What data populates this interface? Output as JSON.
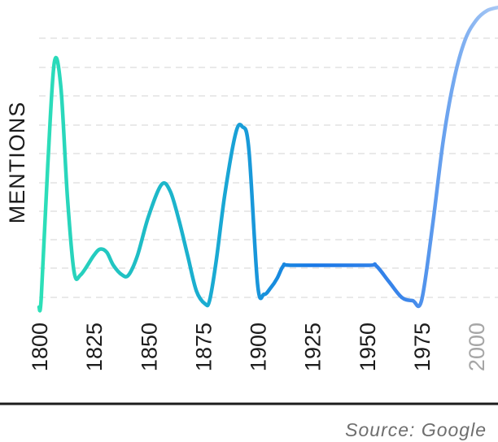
{
  "chart_data": {
    "type": "line",
    "ylabel": "MENTIONS",
    "xlabel": "",
    "title": "",
    "source": "Source: Google",
    "x_ticks": [
      "1800",
      "1825",
      "1850",
      "1875",
      "1900",
      "1925",
      "1950",
      "1975",
      "2000"
    ],
    "faded_ticks": [
      "2000"
    ],
    "xlim": [
      1800,
      2010
    ],
    "ylim": [
      0,
      9
    ],
    "grid": "horizontal-dashed",
    "y_tick_labels_shown": false,
    "line_gradient": [
      "#2de0b8",
      "#1fbfc4",
      "#19a8d4",
      "#1877e6",
      "#3c86ea",
      "#a9c9f5"
    ],
    "series": [
      {
        "x": [
          1800,
          1801,
          1804,
          1807,
          1810,
          1813,
          1816,
          1819,
          1825,
          1828,
          1831,
          1834,
          1838,
          1841,
          1845,
          1850,
          1856,
          1860,
          1864,
          1868,
          1872,
          1876,
          1878,
          1881,
          1885,
          1890,
          1893,
          1896,
          1900,
          1903,
          1906,
          1909,
          1912,
          1916,
          1950,
          1954,
          1960,
          1966,
          1971,
          1975,
          1980,
          1985,
          1990,
          1995,
          2000,
          2005,
          2010
        ],
        "y": [
          0.1,
          0.4,
          4.5,
          7.7,
          6.9,
          3.5,
          1.2,
          1.1,
          1.7,
          1.9,
          1.8,
          1.4,
          1.1,
          1.1,
          1.7,
          2.9,
          3.9,
          3.7,
          2.8,
          1.7,
          0.6,
          0.2,
          0.3,
          1.5,
          3.6,
          5.5,
          5.7,
          5.0,
          0.8,
          0.5,
          0.7,
          1.0,
          1.4,
          1.4,
          1.4,
          1.4,
          0.9,
          0.4,
          0.3,
          0.3,
          2.6,
          5.3,
          7.2,
          8.4,
          9.0,
          9.3,
          9.4
        ]
      }
    ]
  }
}
